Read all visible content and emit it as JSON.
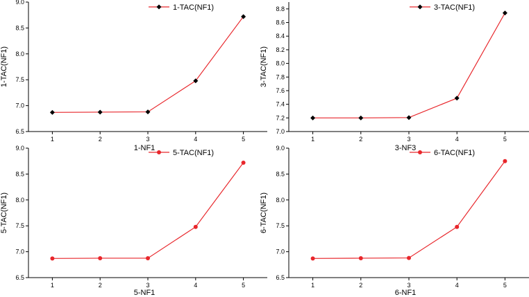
{
  "chart_data": [
    {
      "type": "line",
      "xlabel": "1-NF1",
      "ylabel": "1-TAC(NF1)",
      "x": [
        1,
        2,
        3,
        4,
        5
      ],
      "xticks": [
        "1",
        "2",
        "3",
        "4",
        "5"
      ],
      "ylim": [
        6.5,
        9.0
      ],
      "yticks": [
        "6.5",
        "7.0",
        "7.5",
        "8.0",
        "8.5",
        "9.0"
      ],
      "series": [
        {
          "name": "1-TAC(NF1)",
          "values": [
            6.87,
            6.875,
            6.88,
            7.48,
            8.72
          ],
          "marker": "diamond"
        }
      ],
      "color": "#e8262b",
      "marker_color": "#000000"
    },
    {
      "type": "line",
      "xlabel": "3-NF3",
      "ylabel": "3-TAC(NF1)",
      "x": [
        1,
        2,
        3,
        4,
        5
      ],
      "xticks": [
        "1",
        "2",
        "3",
        "4",
        "5"
      ],
      "ylim": [
        7.0,
        8.9
      ],
      "yticks": [
        "7.0",
        "7.2",
        "7.4",
        "7.6",
        "7.8",
        "8.0",
        "8.2",
        "8.4",
        "8.6",
        "8.8"
      ],
      "series": [
        {
          "name": "3-TAC(NF1)",
          "values": [
            7.2,
            7.2,
            7.205,
            7.49,
            8.74
          ],
          "marker": "diamond"
        }
      ],
      "color": "#e8262b",
      "marker_color": "#000000"
    },
    {
      "type": "line",
      "xlabel": "5-NF1",
      "ylabel": "5-TAC(NF1)",
      "x": [
        1,
        2,
        3,
        4,
        5
      ],
      "xticks": [
        "1",
        "2",
        "3",
        "4",
        "5"
      ],
      "ylim": [
        6.5,
        9.0
      ],
      "yticks": [
        "6.5",
        "7.0",
        "7.5",
        "8.0",
        "8.5",
        "9.0"
      ],
      "series": [
        {
          "name": "5-TAC(NF1)",
          "values": [
            6.87,
            6.875,
            6.875,
            7.48,
            8.72
          ],
          "marker": "circle"
        }
      ],
      "color": "#e8262b",
      "marker_color": "#e8262b"
    },
    {
      "type": "line",
      "xlabel": "6-NF1",
      "ylabel": "6-TAC(NF1)",
      "x": [
        1,
        2,
        3,
        4,
        5
      ],
      "xticks": [
        "1",
        "2",
        "3",
        "4",
        "5"
      ],
      "ylim": [
        6.5,
        9.0
      ],
      "yticks": [
        "6.5",
        "7.0",
        "7.5",
        "8.0",
        "8.5",
        "9.0"
      ],
      "series": [
        {
          "name": "6-TAC(NF1)",
          "values": [
            6.87,
            6.875,
            6.88,
            7.48,
            8.75
          ],
          "marker": "circle"
        }
      ],
      "color": "#e8262b",
      "marker_color": "#e8262b"
    }
  ]
}
